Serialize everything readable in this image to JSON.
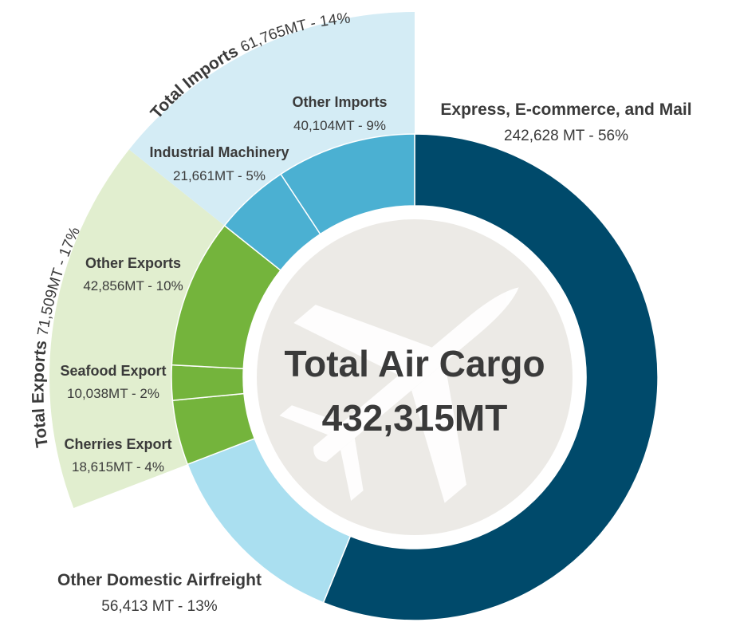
{
  "chart_data": {
    "type": "pie",
    "title": "Total Air Cargo",
    "total_label": "432,315MT",
    "total_value": 432315,
    "unit": "MT",
    "series": [
      {
        "name": "Express, E-commerce, and Mail",
        "value": 242628,
        "percent": 56,
        "value_label": "242,628 MT - 56%",
        "color": "#004a6b"
      },
      {
        "name": "Other Domestic Airfreight",
        "value": 56413,
        "percent": 13,
        "value_label": "56,413 MT - 13%",
        "color": "#aadff0"
      },
      {
        "name": "Cherries Export",
        "value": 18615,
        "percent": 4,
        "value_label": "18,615MT - 4%",
        "color": "#74b43c"
      },
      {
        "name": "Seafood Export",
        "value": 10038,
        "percent": 2,
        "value_label": "10,038MT - 2%",
        "color": "#74b43c"
      },
      {
        "name": "Other Exports",
        "value": 42856,
        "percent": 10,
        "value_label": "42,856MT - 10%",
        "color": "#74b43c"
      },
      {
        "name": "Industrial Machinery",
        "value": 21661,
        "percent": 5,
        "value_label": "21,661MT - 5%",
        "color": "#4bb0d2"
      },
      {
        "name": "Other Imports",
        "value": 40104,
        "percent": 9,
        "value_label": "40,104MT - 9%",
        "color": "#4bb0d2"
      }
    ],
    "groups": [
      {
        "name": "Total Exports",
        "value": 71509,
        "percent": 17,
        "value_label": "71,509MT - 17%",
        "color": "#e1eecf",
        "members": [
          "Cherries Export",
          "Seafood Export",
          "Other Exports"
        ]
      },
      {
        "name": "Total Imports",
        "value": 61765,
        "percent": 14,
        "value_label": "61,765MT - 14%",
        "color": "#d4ecf5",
        "members": [
          "Industrial Machinery",
          "Other Imports"
        ]
      }
    ],
    "center_color": "#eceae6",
    "icon": "airplane-icon"
  }
}
